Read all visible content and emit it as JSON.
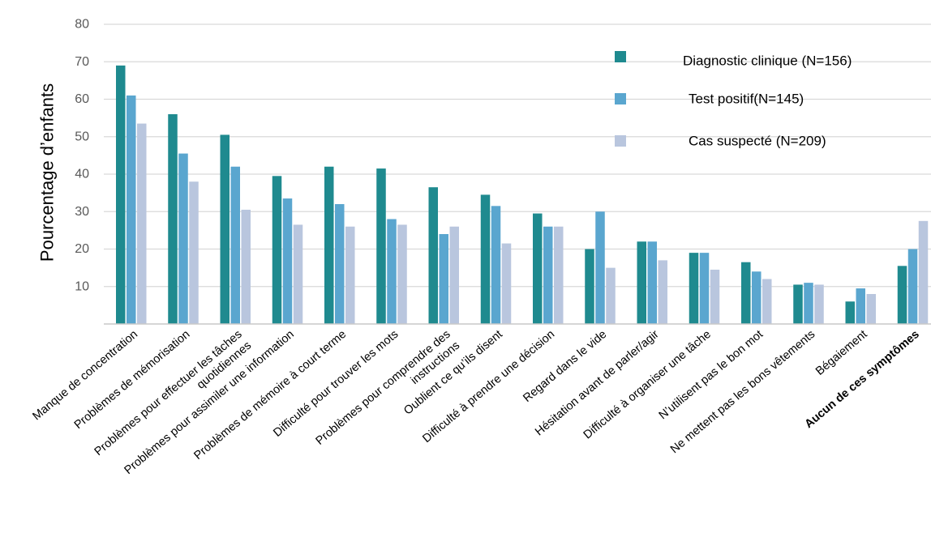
{
  "chart_data": {
    "type": "bar",
    "title": "",
    "xlabel": "",
    "ylabel": "Pourcentage d’enfants",
    "ylim": [
      0,
      80
    ],
    "yticks": [
      10,
      20,
      30,
      40,
      50,
      60,
      70,
      80
    ],
    "grid": true,
    "legend_position": "top-right",
    "categories": [
      [
        "Manque de concentration"
      ],
      [
        "Problèmes de mémorisation"
      ],
      [
        "Problèmes pour effectuer les tâches",
        "quotidiennes"
      ],
      [
        "Problèmes pour assimiler une information"
      ],
      [
        "Problèmes de mémoire à court terme"
      ],
      [
        "Difficulté pour trouver les mots"
      ],
      [
        "Problèmes pour comprendre des",
        "instructions"
      ],
      [
        "Oublient ce qu’ils disent"
      ],
      [
        "Difficulté à prendre une décision"
      ],
      [
        "Regard dans le vide"
      ],
      [
        "Hésitation avant de parler/agir"
      ],
      [
        "Difficulté à organiser une tâche"
      ],
      [
        "N’utilisent pas le bon mot"
      ],
      [
        "Ne mettent pas les bons vêtements"
      ],
      [
        "Bégaiement"
      ],
      [
        "Aucun de ces symptômes"
      ]
    ],
    "bold_category_index": 15,
    "series": [
      {
        "name": "Diagnostic clinique (N=156)",
        "color": "#1f8a8f",
        "values": [
          69,
          56,
          50.5,
          39.5,
          42,
          41.5,
          36.5,
          34.5,
          29.5,
          20,
          22,
          19,
          16.5,
          10.5,
          6,
          15.5
        ]
      },
      {
        "name": "Test positif(N=145)",
        "color": "#5aa6cf",
        "values": [
          61,
          45.5,
          42,
          33.5,
          32,
          28,
          24,
          31.5,
          26,
          30,
          22,
          19,
          14,
          11,
          9.5,
          20
        ]
      },
      {
        "name": "Cas suspecté (N=209)",
        "color": "#b9c6de",
        "values": [
          53.5,
          38,
          30.5,
          26.5,
          26,
          26.5,
          26,
          21.5,
          26,
          15,
          17,
          14.5,
          12,
          10.5,
          8,
          27.5
        ]
      }
    ]
  }
}
